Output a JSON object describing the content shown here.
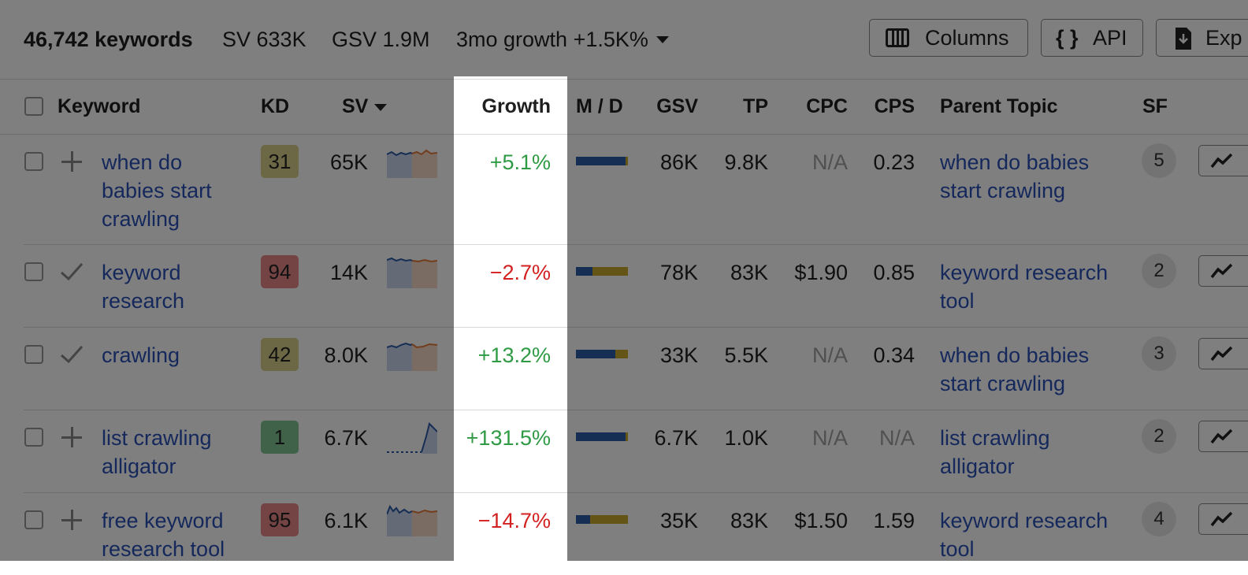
{
  "summary": {
    "keywords_count": "46,742 keywords",
    "sv": "SV 633K",
    "gsv": "GSV 1.9M",
    "growth": "3mo growth +1.5K%"
  },
  "toolbar": {
    "columns_label": "Columns",
    "api_label": "API",
    "export_label": "Exp"
  },
  "table": {
    "headers": {
      "keyword": "Keyword",
      "kd": "KD",
      "sv": "SV",
      "growth": "Growth",
      "md": "M / D",
      "gsv": "GSV",
      "tp": "TP",
      "cpc": "CPC",
      "cps": "CPS",
      "parent_topic": "Parent Topic",
      "sf": "SF"
    },
    "rows": [
      {
        "keyword": "when do babies start crawling",
        "action": "plus",
        "kd": "31",
        "kd_color": "#d9d08a",
        "sv": "65K",
        "growth": "+5.1%",
        "md_blue": 0.96,
        "gsv": "86K",
        "tp": "9.8K",
        "cpc": "N/A",
        "cps": "0.23",
        "parent_topic": "when do babies start crawling",
        "sf": "5"
      },
      {
        "keyword": "keyword research",
        "action": "check",
        "kd": "94",
        "kd_color": "#e8898b",
        "sv": "14K",
        "growth": "−2.7%",
        "md_blue": 0.32,
        "gsv": "78K",
        "tp": "83K",
        "cpc": "$1.90",
        "cps": "0.85",
        "parent_topic": "keyword research tool",
        "sf": "2"
      },
      {
        "keyword": "crawling",
        "action": "check",
        "kd": "42",
        "kd_color": "#d9d08a",
        "sv": "8.0K",
        "growth": "+13.2%",
        "md_blue": 0.75,
        "gsv": "33K",
        "tp": "5.5K",
        "cpc": "N/A",
        "cps": "0.34",
        "parent_topic": "when do babies start crawling",
        "sf": "3"
      },
      {
        "keyword": "list crawling alligator",
        "action": "plus",
        "kd": "1",
        "kd_color": "#7fc493",
        "sv": "6.7K",
        "growth": "+131.5%",
        "md_blue": 0.96,
        "gsv": "6.7K",
        "tp": "1.0K",
        "cpc": "N/A",
        "cps": "N/A",
        "parent_topic": "list crawling alligator",
        "sf": "2"
      },
      {
        "keyword": "free keyword research tool",
        "action": "plus",
        "kd": "95",
        "kd_color": "#e8898b",
        "sv": "6.1K",
        "growth": "−14.7%",
        "md_blue": 0.27,
        "gsv": "35K",
        "tp": "83K",
        "cpc": "$1.50",
        "cps": "1.59",
        "parent_topic": "keyword research tool",
        "sf": "4"
      }
    ]
  },
  "colors": {
    "link": "#2a50b8",
    "positive": "#2e9a44",
    "negative": "#d32020",
    "md_blue": "#2c5aa8",
    "md_yellow": "#c9a92a"
  }
}
